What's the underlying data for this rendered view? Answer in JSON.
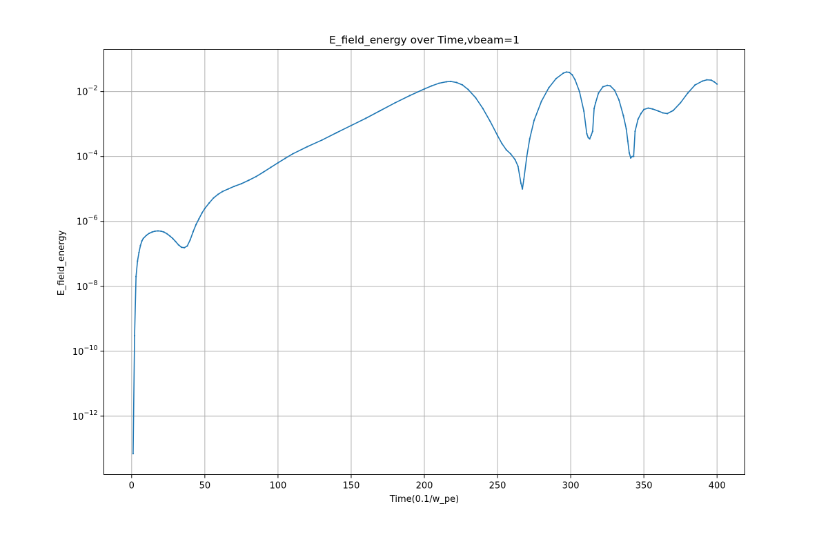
{
  "chart_data": {
    "type": "line",
    "title": "E_field_energy over Time,vbeam=1",
    "xlabel": "Time(0.1/w_pe)",
    "ylabel": "E_field_energy",
    "yscale": "log",
    "grid": true,
    "xlim": [
      -19,
      419
    ],
    "ylim_exp": [
      -13.8,
      -0.7
    ],
    "xticks": [
      0,
      50,
      100,
      150,
      200,
      250,
      300,
      350,
      400
    ],
    "yticks": [
      {
        "base": "10",
        "exp": "−12",
        "value_exp": -12
      },
      {
        "base": "10",
        "exp": "−10",
        "value_exp": -10
      },
      {
        "base": "10",
        "exp": "−8",
        "value_exp": -8
      },
      {
        "base": "10",
        "exp": "−6",
        "value_exp": -6
      },
      {
        "base": "10",
        "exp": "−4",
        "value_exp": -4
      },
      {
        "base": "10",
        "exp": "−2",
        "value_exp": -2
      }
    ],
    "line_color": "#1f77b4",
    "series": [
      {
        "x": [
          1,
          2,
          3,
          4,
          5,
          6,
          7,
          8,
          10,
          12,
          14,
          16,
          18,
          20,
          22,
          24,
          26,
          28,
          30,
          32,
          34,
          36,
          38,
          40,
          42,
          44,
          46,
          48,
          50,
          53,
          56,
          59,
          62,
          66,
          70,
          75,
          80,
          85,
          90,
          95,
          100,
          105,
          110,
          120,
          130,
          140,
          150,
          160,
          170,
          180,
          190,
          200,
          205,
          210,
          215,
          218,
          222,
          226,
          230,
          235,
          240,
          245,
          250,
          253,
          256,
          259,
          262,
          264,
          266,
          267,
          268,
          270,
          272,
          275,
          280,
          285,
          290,
          295,
          297,
          299,
          301,
          303,
          306,
          309,
          311,
          312,
          313,
          314,
          315,
          316,
          317,
          319,
          322,
          325,
          327,
          330,
          333,
          336,
          338,
          339,
          340,
          341,
          342,
          343,
          344,
          346,
          348,
          350,
          353,
          356,
          360,
          363,
          366,
          370,
          375,
          380,
          385,
          390,
          393,
          396,
          398,
          400
        ],
        "y": [
          7e-14,
          3e-10,
          2e-08,
          6e-08,
          1.1e-07,
          1.8e-07,
          2.5e-07,
          3e-07,
          3.7e-07,
          4.3e-07,
          4.7e-07,
          5e-07,
          5.1e-07,
          5e-07,
          4.7e-07,
          4.2e-07,
          3.6e-07,
          3e-07,
          2.4e-07,
          1.9e-07,
          1.6e-07,
          1.55e-07,
          1.75e-07,
          2.7e-07,
          4.8e-07,
          8e-07,
          1.2e-06,
          1.8e-06,
          2.5e-06,
          3.7e-06,
          5.3e-06,
          6.8e-06,
          8.3e-06,
          1e-05,
          1.2e-05,
          1.45e-05,
          1.85e-05,
          2.4e-05,
          3.3e-05,
          4.6e-05,
          6.4e-05,
          8.8e-05,
          0.00012,
          0.0002,
          0.00032,
          0.00054,
          0.0009,
          0.0015,
          0.0026,
          0.0045,
          0.0075,
          0.012,
          0.015,
          0.018,
          0.02,
          0.0205,
          0.019,
          0.016,
          0.0115,
          0.0065,
          0.003,
          0.0012,
          0.00044,
          0.00025,
          0.00016,
          0.00012,
          8e-05,
          5e-05,
          1.5e-05,
          1e-05,
          2e-05,
          0.0001,
          0.00035,
          0.0013,
          0.005,
          0.013,
          0.025,
          0.037,
          0.04,
          0.039,
          0.033,
          0.023,
          0.01,
          0.0025,
          0.0005,
          0.00038,
          0.00035,
          0.00045,
          0.0006,
          0.003,
          0.0045,
          0.009,
          0.014,
          0.0155,
          0.015,
          0.011,
          0.0055,
          0.0018,
          0.0007,
          0.0003,
          0.00013,
          9e-05,
          0.0001,
          0.0001,
          0.0006,
          0.0014,
          0.0021,
          0.0028,
          0.0031,
          0.0029,
          0.0025,
          0.0022,
          0.0021,
          0.0026,
          0.0045,
          0.009,
          0.016,
          0.021,
          0.023,
          0.0225,
          0.02,
          0.017
        ]
      }
    ]
  }
}
